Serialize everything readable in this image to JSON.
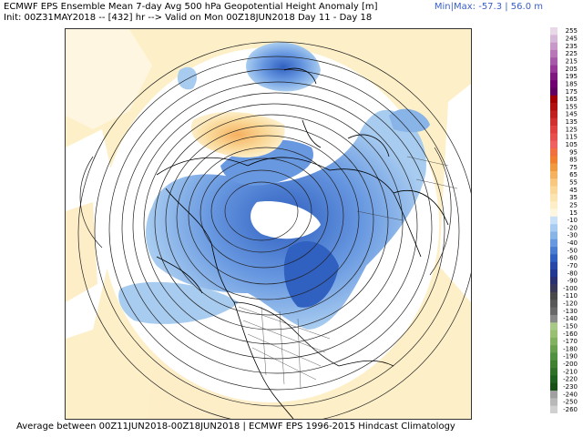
{
  "header": {
    "title": "ECMWF EPS Ensemble Mean 7-day Avg 500 hPa Geopotential Height Anomaly [m]",
    "subtitle": "Init: 00Z31MAY2018 -- [432] hr --> Valid on Mon 00Z18JUN2018   Day 11 - Day 18",
    "minmax": "Min|Max: -57.3 | 56.0 m"
  },
  "footer": "Average between 00Z11JUN2018-00Z18JUN2018 | ECMWF EPS 1996-2015 Hindcast Climatology",
  "colorbar": {
    "labels": [
      "255",
      "245",
      "235",
      "225",
      "215",
      "205",
      "195",
      "185",
      "175",
      "165",
      "155",
      "145",
      "135",
      "125",
      "115",
      "105",
      "95",
      "85",
      "75",
      "65",
      "55",
      "45",
      "35",
      "25",
      "15",
      "-10",
      "-20",
      "-30",
      "-40",
      "-50",
      "-60",
      "-70",
      "-80",
      "-90",
      "-100",
      "-110",
      "-120",
      "-130",
      "-140",
      "-150",
      "-160",
      "-170",
      "-180",
      "-190",
      "-200",
      "-210",
      "-220",
      "-230",
      "-240",
      "-250",
      "-260"
    ],
    "colors": [
      "#e8d8e8",
      "#d8b8d8",
      "#c898c8",
      "#b878b8",
      "#a858a8",
      "#983898",
      "#801880",
      "#700070",
      "#600060",
      "#a00000",
      "#b01010",
      "#c02020",
      "#d03030",
      "#e04040",
      "#e85050",
      "#f06060",
      "#f07040",
      "#f08030",
      "#f09a40",
      "#f5b060",
      "#f8c880",
      "#fad898",
      "#fce4b0",
      "#fdeec8",
      "#fef6e0",
      "#c8e0f8",
      "#a8ccf0",
      "#88b4e8",
      "#6898e0",
      "#4a7cd0",
      "#3060c0",
      "#2848a8",
      "#203890",
      "#283070",
      "#383858",
      "#484848",
      "#585858",
      "#686868",
      "#888888",
      "#a8c888",
      "#98c070",
      "#80b060",
      "#68a050",
      "#509040",
      "#408030",
      "#307028",
      "#206020",
      "#185018",
      "#a0a0a0",
      "#b8b8b8",
      "#d0d0d0"
    ]
  }
}
